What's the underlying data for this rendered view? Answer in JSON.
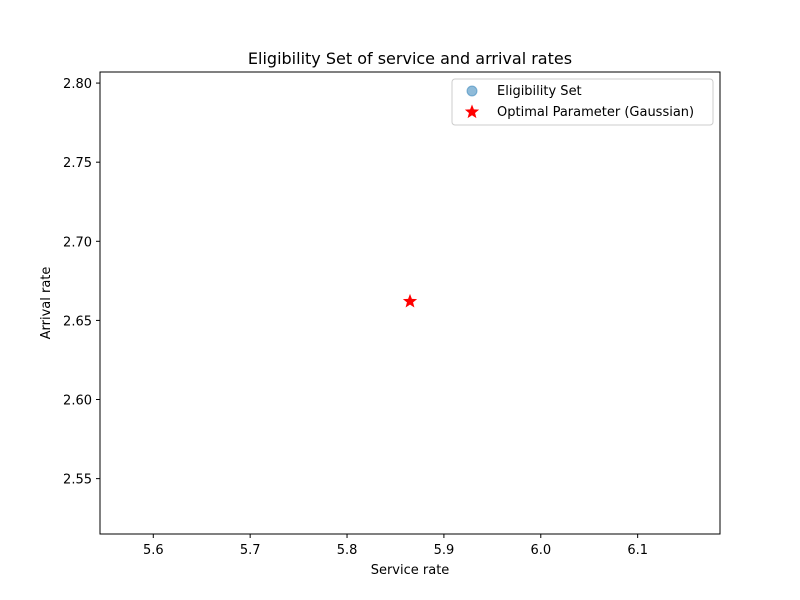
{
  "chart_data": {
    "type": "scatter",
    "title": "Eligibility Set of service and arrival rates",
    "xlabel": "Service rate",
    "ylabel": "Arrival rate",
    "xlim": [
      5.545,
      6.185
    ],
    "ylim": [
      2.515,
      2.807
    ],
    "xticks": [
      5.6,
      5.7,
      5.8,
      5.9,
      6.0,
      6.1
    ],
    "yticks": [
      2.55,
      2.6,
      2.65,
      2.7,
      2.75,
      2.8
    ],
    "xtick_labels": [
      "5.6",
      "5.7",
      "5.8",
      "5.9",
      "6.0",
      "6.1"
    ],
    "ytick_labels": [
      "2.55",
      "2.60",
      "2.65",
      "2.70",
      "2.75",
      "2.80"
    ],
    "grid": false,
    "legend_position": "top-right",
    "series": [
      {
        "name": "Eligibility Set",
        "marker": "circle",
        "color": "#1f77b4",
        "alpha": 0.5,
        "points": []
      },
      {
        "name": "Optimal Parameter (Gaussian)",
        "marker": "star",
        "color": "#ff0000",
        "points": [
          {
            "x": 5.865,
            "y": 2.662
          }
        ]
      }
    ]
  }
}
